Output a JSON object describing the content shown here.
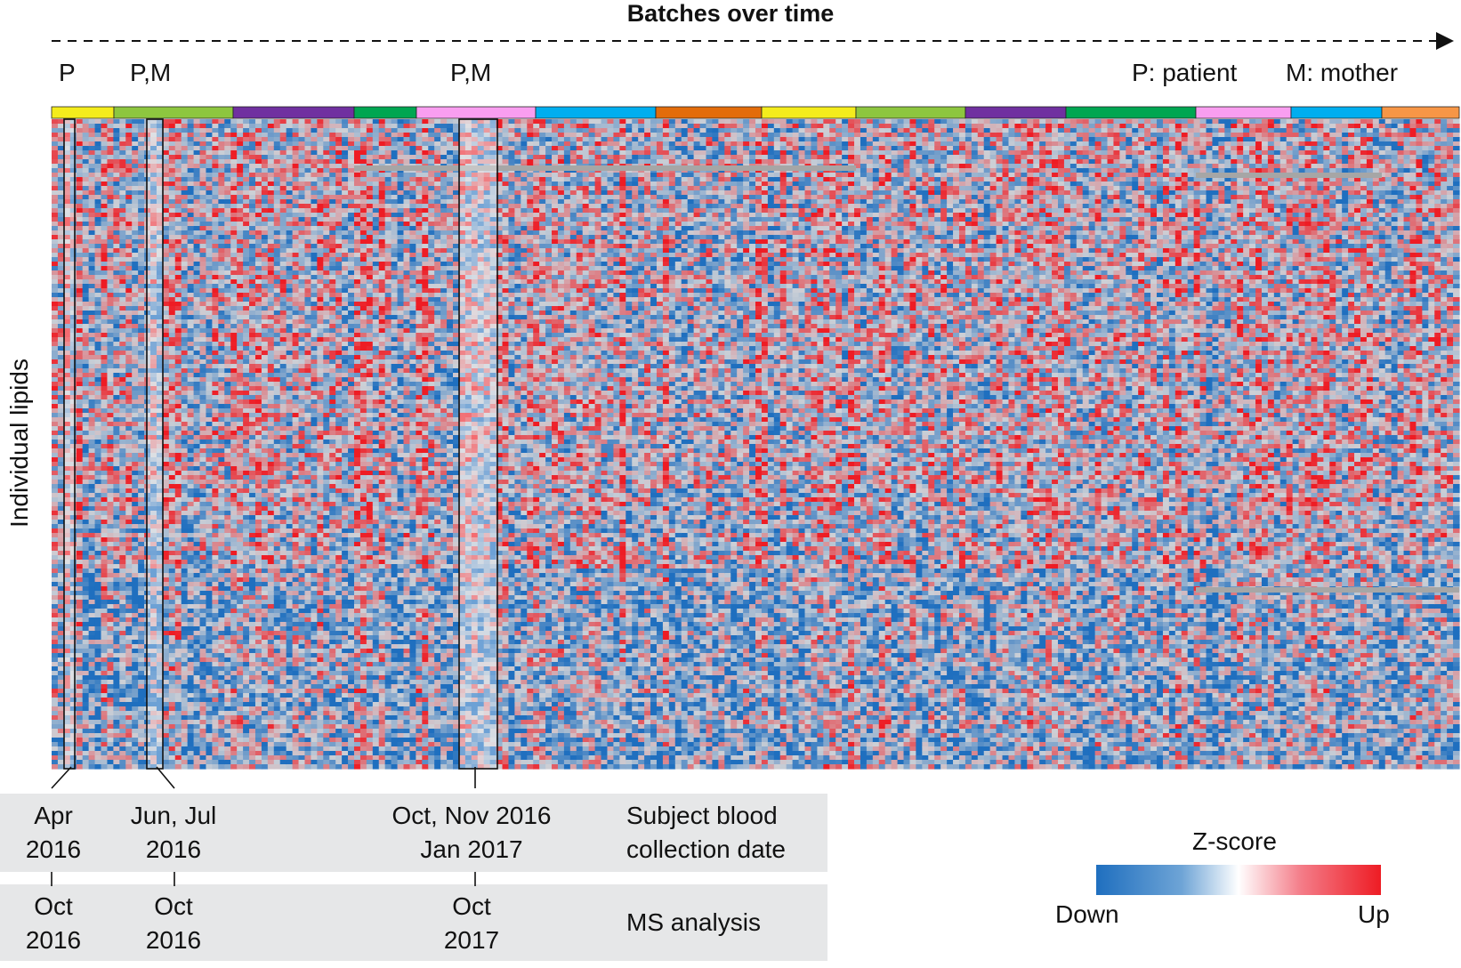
{
  "chart_data": {
    "type": "heatmap",
    "title": "Batches over time",
    "ylabel": "Individual lipids",
    "legend": {
      "title": "Z-score",
      "low_label": "Down",
      "high_label": "Up",
      "position": "bottom-right"
    },
    "subject_labels": [
      {
        "text": "P"
      },
      {
        "text": "P,M"
      },
      {
        "text": "P,M"
      }
    ],
    "key": {
      "patient": "P: patient",
      "mother": "M: mother"
    },
    "batch_colors": [
      "#f4ec1c",
      "#8dc63f",
      "#7030a0",
      "#00a651",
      "#f99ef0",
      "#00aeef",
      "#e36c0a",
      "#f4ec1c",
      "#8dc63f",
      "#7030a0",
      "#00a651",
      "#f99ef0",
      "#00aeef",
      "#f79646"
    ],
    "dates": [
      {
        "collection_line1": "Apr",
        "collection_line2": "2016",
        "ms_line1": "Oct",
        "ms_line2": "2016"
      },
      {
        "collection_line1": "Jun, Jul",
        "collection_line2": "2016",
        "ms_line1": "Oct",
        "ms_line2": "2016"
      },
      {
        "collection_line1": "Oct, Nov 2016",
        "collection_line2": "Jan 2017",
        "ms_line1": "Oct",
        "ms_line2": "2017"
      }
    ],
    "row_labels": {
      "collection_line1": "Subject blood",
      "collection_line2": "collection date",
      "ms": "MS analysis"
    },
    "colors": {
      "down": "#1f6fbf",
      "mid": "#ffffff",
      "up": "#ee1c24",
      "missing": "#a6a6a6"
    }
  }
}
